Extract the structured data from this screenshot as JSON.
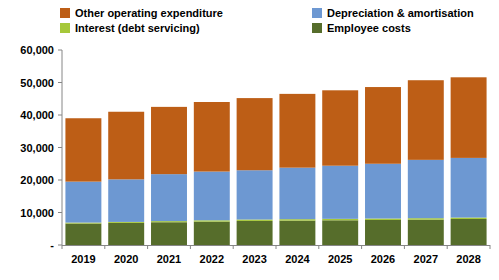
{
  "chart_data": {
    "type": "bar",
    "stacked": true,
    "legend": "top",
    "grid": false,
    "categories": [
      "2019",
      "2020",
      "2021",
      "2022",
      "2023",
      "2024",
      "2025",
      "2026",
      "2027",
      "2028"
    ],
    "series": [
      {
        "name": "Employee costs",
        "color": "#566d2b",
        "values": [
          6600,
          6800,
          7000,
          7200,
          7400,
          7500,
          7600,
          7700,
          7800,
          8000
        ]
      },
      {
        "name": "Interest (debt servicing)",
        "color": "#a6c83a",
        "values": [
          300,
          300,
          350,
          400,
          450,
          450,
          450,
          450,
          450,
          450
        ]
      },
      {
        "name": "Depreciation & amortisation",
        "color": "#6d98d2",
        "values": [
          12600,
          13100,
          14450,
          15000,
          15150,
          15850,
          16350,
          16850,
          17950,
          18350
        ]
      },
      {
        "name": "Other operating expenditure",
        "color": "#bd5e16",
        "values": [
          19500,
          20800,
          20700,
          21400,
          22200,
          22700,
          23200,
          23600,
          24500,
          24800
        ]
      }
    ],
    "ylim": [
      0,
      60000
    ],
    "yticks": [
      {
        "value": 0,
        "label": "-"
      },
      {
        "value": 10000,
        "label": "10,000"
      },
      {
        "value": 20000,
        "label": "20,000"
      },
      {
        "value": 30000,
        "label": "30,000"
      },
      {
        "value": 40000,
        "label": "40,000"
      },
      {
        "value": 50000,
        "label": "50,000"
      },
      {
        "value": 60000,
        "label": "60,000"
      }
    ]
  }
}
